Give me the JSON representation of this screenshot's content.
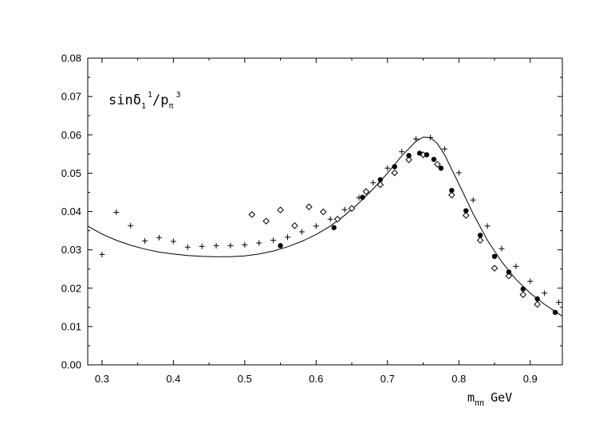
{
  "chart_data": {
    "type": "scatter",
    "title": "",
    "ylabel": {
      "base": "sinδ",
      "sub1": "1",
      "sup1": "1",
      "mid": "/p",
      "sub2": "π",
      "sup2": "3"
    },
    "xlabel": {
      "base": "m",
      "sub": "ππ",
      "unit": "GeV"
    },
    "xlim": [
      0.28,
      0.945
    ],
    "ylim": [
      0.0,
      0.08
    ],
    "x_ticks": [
      0.3,
      0.4,
      0.5,
      0.6,
      0.7,
      0.8,
      0.9
    ],
    "x_tick_labels": [
      "0.3",
      "0.4",
      "0.5",
      "0.6",
      "0.7",
      "0.8",
      "0.9"
    ],
    "y_ticks": [
      0.0,
      0.01,
      0.02,
      0.03,
      0.04,
      0.05,
      0.06,
      0.07,
      0.08
    ],
    "y_tick_labels": [
      "0.00",
      "0.01",
      "0.02",
      "0.03",
      "0.04",
      "0.05",
      "0.06",
      "0.07",
      "0.08"
    ],
    "grid": false,
    "legend": "none",
    "series": [
      {
        "marker": "plus",
        "points": [
          [
            0.3,
            0.0288
          ],
          [
            0.32,
            0.0398
          ],
          [
            0.34,
            0.0363
          ],
          [
            0.36,
            0.0323
          ],
          [
            0.38,
            0.0332
          ],
          [
            0.4,
            0.0322
          ],
          [
            0.42,
            0.0307
          ],
          [
            0.44,
            0.0309
          ],
          [
            0.46,
            0.0311
          ],
          [
            0.48,
            0.0311
          ],
          [
            0.5,
            0.0313
          ],
          [
            0.52,
            0.0318
          ],
          [
            0.54,
            0.0325
          ],
          [
            0.56,
            0.0333
          ],
          [
            0.58,
            0.0347
          ],
          [
            0.6,
            0.0362
          ],
          [
            0.62,
            0.038
          ],
          [
            0.64,
            0.0405
          ],
          [
            0.66,
            0.0436
          ],
          [
            0.68,
            0.0475
          ],
          [
            0.7,
            0.0513
          ],
          [
            0.72,
            0.0556
          ],
          [
            0.74,
            0.0589
          ],
          [
            0.76,
            0.0593
          ],
          [
            0.78,
            0.0563
          ],
          [
            0.8,
            0.0501
          ],
          [
            0.82,
            0.043
          ],
          [
            0.84,
            0.0362
          ],
          [
            0.86,
            0.0303
          ],
          [
            0.88,
            0.0257
          ],
          [
            0.9,
            0.0218
          ],
          [
            0.92,
            0.0187
          ],
          [
            0.94,
            0.0163
          ]
        ]
      },
      {
        "marker": "diamond",
        "points": [
          [
            0.51,
            0.0392
          ],
          [
            0.53,
            0.0375
          ],
          [
            0.55,
            0.0404
          ],
          [
            0.57,
            0.0363
          ],
          [
            0.59,
            0.0412
          ],
          [
            0.61,
            0.0399
          ],
          [
            0.63,
            0.038
          ],
          [
            0.65,
            0.0408
          ],
          [
            0.67,
            0.0452
          ],
          [
            0.69,
            0.047
          ],
          [
            0.71,
            0.0501
          ],
          [
            0.73,
            0.0535
          ],
          [
            0.75,
            0.0548
          ],
          [
            0.77,
            0.0523
          ],
          [
            0.79,
            0.0443
          ],
          [
            0.81,
            0.039
          ],
          [
            0.83,
            0.0325
          ],
          [
            0.85,
            0.0252
          ],
          [
            0.87,
            0.0232
          ],
          [
            0.89,
            0.0183
          ],
          [
            0.91,
            0.0158
          ]
        ]
      },
      {
        "marker": "filled-circle",
        "points": [
          [
            0.55,
            0.0311
          ],
          [
            0.625,
            0.0358
          ],
          [
            0.665,
            0.0437
          ],
          [
            0.69,
            0.0483
          ],
          [
            0.71,
            0.0517
          ],
          [
            0.73,
            0.0546
          ],
          [
            0.745,
            0.0552
          ],
          [
            0.755,
            0.0548
          ],
          [
            0.765,
            0.0536
          ],
          [
            0.775,
            0.0513
          ],
          [
            0.79,
            0.0455
          ],
          [
            0.81,
            0.0402
          ],
          [
            0.83,
            0.0338
          ],
          [
            0.85,
            0.0283
          ],
          [
            0.87,
            0.0242
          ],
          [
            0.89,
            0.0198
          ],
          [
            0.91,
            0.0172
          ],
          [
            0.935,
            0.0137
          ]
        ]
      },
      {
        "marker": "line",
        "points": [
          [
            0.28,
            0.0362
          ],
          [
            0.3,
            0.0341
          ],
          [
            0.32,
            0.0325
          ],
          [
            0.34,
            0.0312
          ],
          [
            0.36,
            0.0302
          ],
          [
            0.38,
            0.0294
          ],
          [
            0.4,
            0.0289
          ],
          [
            0.42,
            0.0285
          ],
          [
            0.44,
            0.0283
          ],
          [
            0.46,
            0.0282
          ],
          [
            0.48,
            0.0282
          ],
          [
            0.5,
            0.0284
          ],
          [
            0.52,
            0.0289
          ],
          [
            0.54,
            0.0297
          ],
          [
            0.56,
            0.0308
          ],
          [
            0.58,
            0.0322
          ],
          [
            0.6,
            0.034
          ],
          [
            0.62,
            0.0362
          ],
          [
            0.64,
            0.039
          ],
          [
            0.66,
            0.0422
          ],
          [
            0.68,
            0.0459
          ],
          [
            0.7,
            0.05
          ],
          [
            0.72,
            0.0545
          ],
          [
            0.74,
            0.0583
          ],
          [
            0.75,
            0.0594
          ],
          [
            0.76,
            0.0593
          ],
          [
            0.77,
            0.0577
          ],
          [
            0.78,
            0.0548
          ],
          [
            0.8,
            0.0472
          ],
          [
            0.82,
            0.0394
          ],
          [
            0.84,
            0.0325
          ],
          [
            0.86,
            0.0269
          ],
          [
            0.88,
            0.0223
          ],
          [
            0.9,
            0.0187
          ],
          [
            0.92,
            0.0158
          ],
          [
            0.945,
            0.0127
          ]
        ]
      }
    ]
  }
}
